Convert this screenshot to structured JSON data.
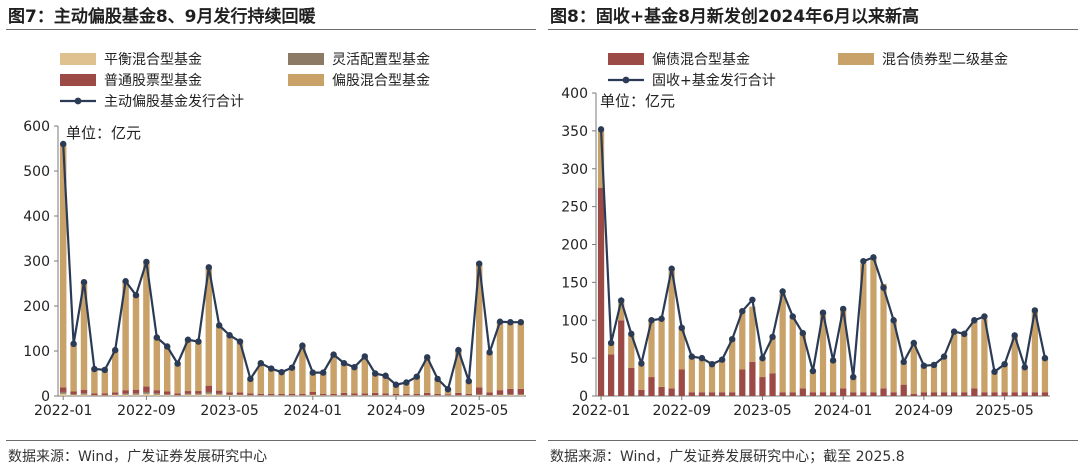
{
  "chart_data": [
    {
      "type": "bar",
      "stacked": true,
      "title": "图7：主动偏股基金8、9月发行持续回暖",
      "unit_label": "单位：亿元",
      "source": "数据来源：Wind，广发证券发展研究中心",
      "ylim": [
        0,
        600
      ],
      "yticks": [
        0,
        100,
        200,
        300,
        400,
        500,
        600
      ],
      "x_tick_labels": [
        "2022-01",
        "2022-09",
        "2023-05",
        "2024-01",
        "2024-09",
        "2025-05"
      ],
      "x_tick_indices": [
        0,
        8,
        16,
        24,
        32,
        40
      ],
      "legend_placement": "top-left",
      "series": [
        {
          "name": "平衡混合型基金",
          "kind": "bar",
          "color": "#dfc08f",
          "values": [
            5,
            2,
            3,
            1,
            1,
            2,
            3,
            3,
            5,
            3,
            2,
            1,
            3,
            3,
            5,
            3,
            2,
            2,
            1,
            1,
            1,
            1,
            1,
            1,
            2,
            1,
            1,
            1,
            1,
            1,
            1,
            1,
            1,
            1,
            1,
            1,
            1,
            1,
            1,
            1,
            2,
            1,
            2,
            2,
            2
          ]
        },
        {
          "name": "灵活配置型基金",
          "kind": "bar",
          "color": "#8c7a67",
          "values": [
            4,
            2,
            3,
            1,
            1,
            1,
            2,
            3,
            4,
            3,
            2,
            1,
            2,
            2,
            4,
            2,
            1,
            1,
            1,
            1,
            1,
            1,
            1,
            1,
            1,
            1,
            1,
            1,
            1,
            1,
            1,
            1,
            1,
            1,
            1,
            1,
            1,
            1,
            1,
            1,
            2,
            1,
            1,
            2,
            2
          ]
        },
        {
          "name": "普通股票型基金",
          "kind": "bar",
          "color": "#9c4a45",
          "values": [
            10,
            6,
            8,
            4,
            4,
            5,
            8,
            8,
            12,
            7,
            6,
            4,
            6,
            6,
            14,
            7,
            5,
            5,
            4,
            3,
            3,
            3,
            3,
            3,
            6,
            3,
            3,
            5,
            4,
            4,
            5,
            4,
            3,
            3,
            3,
            5,
            3,
            2,
            5,
            3,
            15,
            6,
            10,
            12,
            12
          ]
        },
        {
          "name": "偏股混合型基金",
          "kind": "bar",
          "color": "#c9a26a",
          "values": [
            541,
            106,
            239,
            54,
            52,
            94,
            242,
            210,
            277,
            117,
            100,
            66,
            114,
            110,
            263,
            145,
            128,
            113,
            32,
            68,
            56,
            48,
            58,
            107,
            43,
            47,
            87,
            66,
            58,
            82,
            43,
            39,
            20,
            25,
            38,
            79,
            33,
            11,
            95,
            28,
            275,
            89,
            152,
            148,
            148
          ]
        },
        {
          "name": "主动偏股基金发行合计",
          "kind": "line",
          "color": "#2b3b55",
          "values": [
            560,
            116,
            253,
            60,
            58,
            102,
            255,
            224,
            298,
            130,
            110,
            72,
            125,
            121,
            286,
            157,
            135,
            121,
            38,
            73,
            61,
            53,
            63,
            112,
            52,
            52,
            92,
            73,
            64,
            88,
            50,
            45,
            25,
            30,
            43,
            86,
            38,
            15,
            102,
            33,
            294,
            97,
            165,
            164,
            164
          ]
        }
      ]
    },
    {
      "type": "bar",
      "stacked": true,
      "title": "图8：固收+基金8月新发创2024年6月以来新高",
      "unit_label": "单位：亿元",
      "source": "数据来源：Wind，广发证券发展研究中心；截至 2025.8",
      "ylim": [
        0,
        400
      ],
      "yticks": [
        0,
        50,
        100,
        150,
        200,
        250,
        300,
        350,
        400
      ],
      "x_tick_labels": [
        "2022-01",
        "2022-09",
        "2023-05",
        "2024-01",
        "2024-09",
        "2025-05"
      ],
      "x_tick_indices": [
        0,
        8,
        16,
        24,
        32,
        40
      ],
      "legend_placement": "top",
      "series": [
        {
          "name": "偏债混合型基金",
          "kind": "bar",
          "color": "#9c4a45",
          "values": [
            275,
            55,
            100,
            37,
            8,
            25,
            12,
            10,
            35,
            5,
            5,
            5,
            5,
            5,
            35,
            45,
            25,
            30,
            5,
            5,
            10,
            5,
            5,
            5,
            10,
            5,
            5,
            5,
            10,
            5,
            15,
            3,
            5,
            5,
            5,
            5,
            5,
            10,
            5,
            5,
            5,
            5,
            5,
            5,
            5
          ]
        },
        {
          "name": "混合债券型二级基金",
          "kind": "bar",
          "color": "#c9a26a",
          "values": [
            75,
            15,
            25,
            45,
            35,
            75,
            90,
            158,
            55,
            47,
            45,
            37,
            43,
            70,
            78,
            73,
            25,
            48,
            130,
            100,
            73,
            28,
            105,
            42,
            105,
            20,
            170,
            178,
            138,
            95,
            30,
            67,
            35,
            36,
            47,
            80,
            77,
            90,
            97,
            27,
            37,
            75,
            33,
            108,
            45
          ]
        },
        {
          "name": "固收+基金发行合计",
          "kind": "line",
          "color": "#2b3b55",
          "values": [
            352,
            70,
            126,
            82,
            43,
            100,
            102,
            168,
            90,
            52,
            50,
            42,
            48,
            75,
            112,
            127,
            50,
            78,
            138,
            105,
            83,
            33,
            110,
            47,
            115,
            25,
            178,
            183,
            143,
            100,
            45,
            70,
            40,
            41,
            52,
            85,
            82,
            100,
            105,
            32,
            42,
            80,
            38,
            113,
            50
          ]
        }
      ]
    }
  ]
}
